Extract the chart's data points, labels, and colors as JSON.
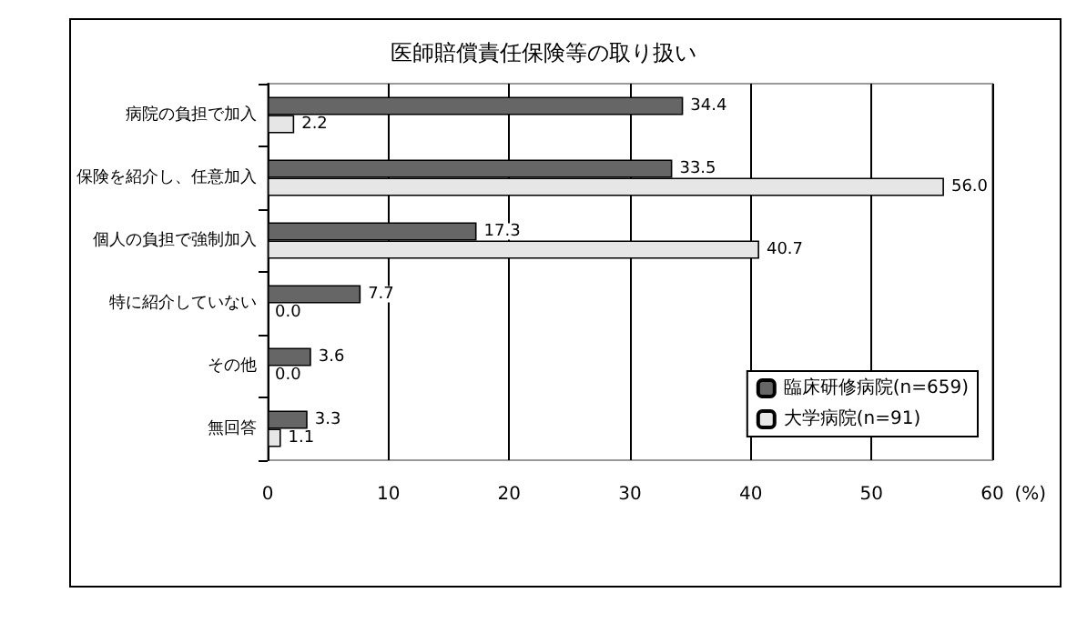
{
  "chart_data": {
    "type": "bar",
    "orientation": "horizontal",
    "title": "医師賠償責任保険等の取り扱い",
    "xlabel": "(%)",
    "categories": [
      "病院の負担で加入",
      "保険を紹介し、任意加入",
      "個人の負担で強制加入",
      "特に紹介していない",
      "その他",
      "無回答"
    ],
    "series": [
      {
        "name": "臨床研修病院(n=659)",
        "color": "#666666",
        "values": [
          34.4,
          33.5,
          17.3,
          7.7,
          3.6,
          3.3
        ],
        "value_labels": [
          "34.4",
          "33.5",
          "17.3",
          "7.7",
          "3.6",
          "3.3"
        ]
      },
      {
        "name": "大学病院(n=91)",
        "color": "#e6e6e6",
        "values": [
          2.2,
          56.0,
          40.7,
          0.0,
          0.0,
          1.1
        ],
        "value_labels": [
          "2.2",
          "56.0",
          "40.7",
          "0.0",
          "0.0",
          "1.1"
        ]
      }
    ],
    "xlim": [
      0,
      60
    ],
    "xticks": [
      0,
      10,
      20,
      30,
      40,
      50,
      60
    ],
    "grid": "x",
    "legend": "bottom right"
  }
}
